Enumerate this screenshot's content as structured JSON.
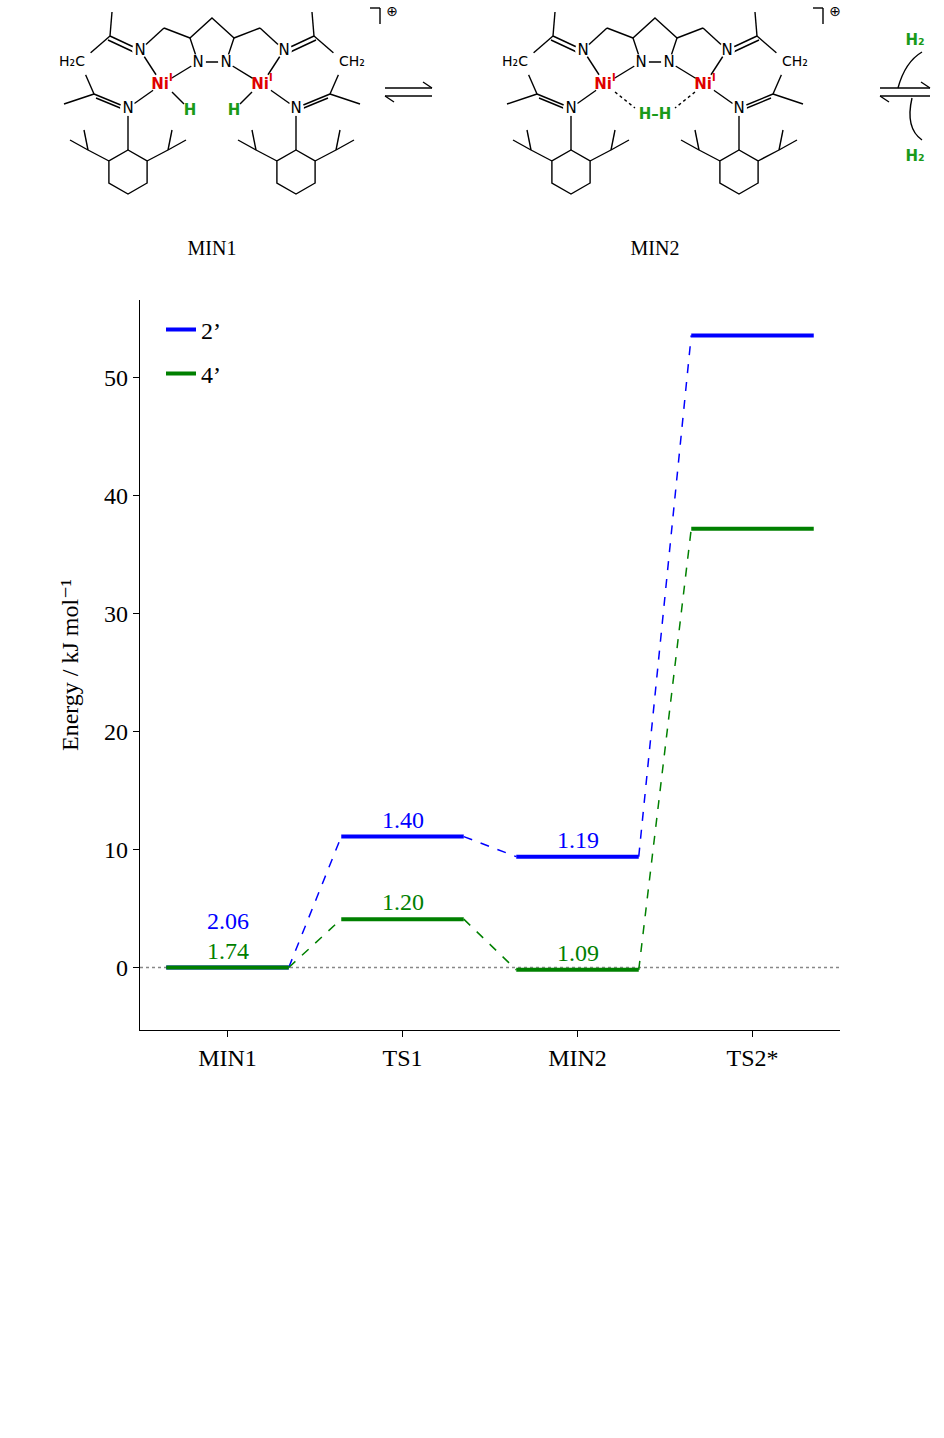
{
  "chart_data": {
    "type": "energy_levels",
    "categories": [
      "MIN1",
      "TS1",
      "MIN2",
      "TS2*"
    ],
    "series": [
      {
        "name": "2’",
        "color": "#0000ff",
        "values": [
          0,
          11.1,
          9.4,
          53.6
        ],
        "level_labels": [
          "2.06",
          "1.40",
          "1.19",
          null
        ]
      },
      {
        "name": "4’",
        "color": "#008000",
        "values": [
          0,
          4.1,
          -0.2,
          37.2
        ],
        "level_labels": [
          "1.74",
          "1.20",
          "1.09",
          null
        ]
      }
    ],
    "y_label": "Energy / kJ mol⁻¹",
    "ylim": [
      -5.3,
      56.6
    ],
    "yticks": [
      0,
      10,
      20,
      30,
      40,
      50
    ],
    "reference_line": 0,
    "line_style": "dashed",
    "legend": "upper left",
    "grid": false
  },
  "scheme": {
    "species": [
      {
        "name": "MIN1",
        "hydride": [
          "H",
          "H"
        ]
      },
      {
        "name": "MIN2",
        "hydride": [
          "H–H"
        ]
      }
    ],
    "metal": "Ni",
    "metal_charge": "I",
    "donor": "N",
    "bridge": [
      "H₂C",
      "CH₂"
    ],
    "charge": "⊕",
    "gas": "H₂"
  }
}
